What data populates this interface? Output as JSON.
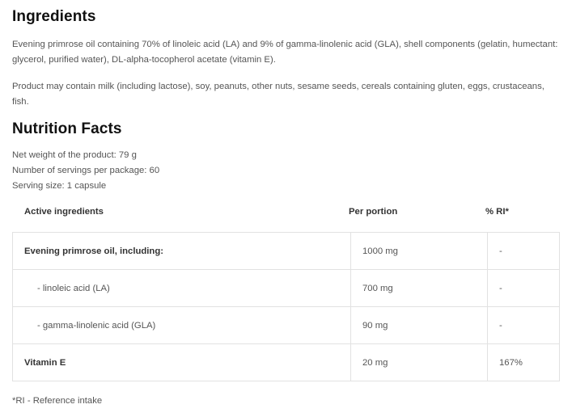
{
  "ingredients": {
    "title": "Ingredients",
    "paragraph1": "Evening primrose oil containing 70% of linoleic acid (LA) and 9% of gamma-linolenic acid (GLA), shell components (gelatin, humectant: glycerol, purified water), DL-alpha-tocopherol acetate (vitamin E).",
    "paragraph2": "Product may contain milk (including lactose), soy, peanuts, other nuts, sesame seeds, cereals containing gluten, eggs, crustaceans, fish."
  },
  "nutrition": {
    "title": "Nutrition Facts",
    "net_weight": "Net weight of the product: 79 g",
    "servings": "Number of servings per package: 60",
    "serving_size": "Serving size: 1 capsule",
    "headers": [
      "Active ingredients",
      "Per portion",
      "% RI*"
    ],
    "rows": [
      {
        "name": "Evening primrose oil, including:",
        "portion": "1000 mg",
        "ri": "-"
      },
      {
        "name": "- linoleic acid (LA)",
        "portion": "700 mg",
        "ri": "-"
      },
      {
        "name": "- gamma-linolenic acid (GLA)",
        "portion": "90 mg",
        "ri": "-"
      },
      {
        "name": "Vitamin E",
        "portion": "20 mg",
        "ri": "167%"
      }
    ],
    "footnote": "*RI - Reference intake"
  }
}
